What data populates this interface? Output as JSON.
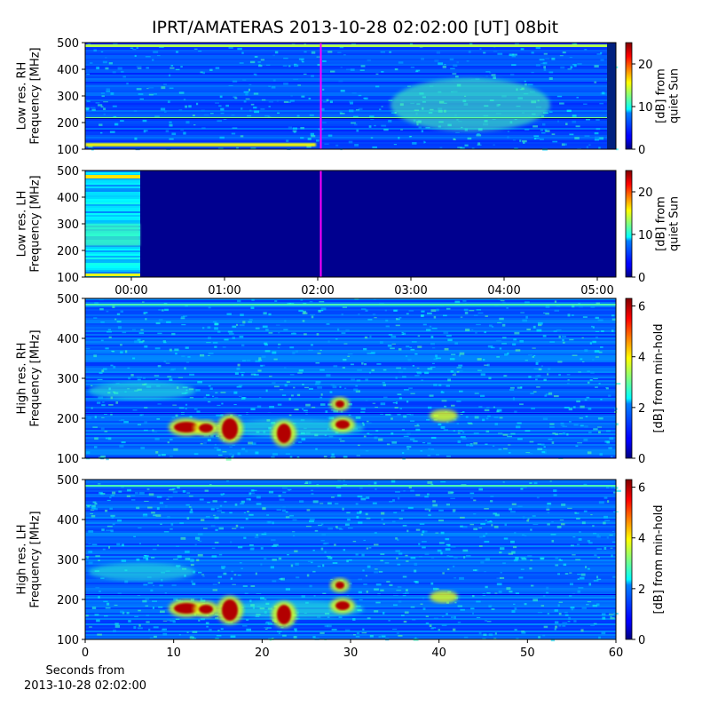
{
  "title": "IPRT/AMATERAS 2013-10-28 02:02:00 [UT]   08bit",
  "chart_data": [
    {
      "type": "heatmap",
      "ylabel": [
        "Low res. RH",
        "Frequency [MHz]"
      ],
      "xlim": [
        -0.495,
        5.2
      ],
      "ylim": [
        100,
        500
      ],
      "yticks": [
        100,
        200,
        300,
        400,
        500
      ],
      "marker_x": 2.0333,
      "marker_color": "#ff00ff",
      "clim": [
        0,
        25
      ],
      "cticks": [
        0,
        10,
        20
      ],
      "clabel": [
        "[dB] from",
        "quiet Sun"
      ]
    },
    {
      "type": "heatmap",
      "ylabel": [
        "Low res. LH",
        "Frequency [MHz]"
      ],
      "xlim": [
        -0.495,
        5.2
      ],
      "ylim": [
        100,
        500
      ],
      "yticks": [
        100,
        200,
        300,
        400,
        500
      ],
      "xticks": [
        {
          "value": 0,
          "label": "00:00"
        },
        {
          "value": 1,
          "label": "01:00"
        },
        {
          "value": 2,
          "label": "02:00"
        },
        {
          "value": 3,
          "label": "03:00"
        },
        {
          "value": 4,
          "label": "04:00"
        },
        {
          "value": 5,
          "label": "05:00"
        }
      ],
      "marker_x": 2.0333,
      "marker_color": "#ff00ff",
      "clim": [
        0,
        25
      ],
      "cticks": [
        0,
        10,
        20
      ],
      "clabel": [
        "[dB] from",
        "quiet Sun"
      ]
    },
    {
      "type": "heatmap",
      "ylabel": [
        "High res. RH",
        "Frequency [MHz]"
      ],
      "xlim": [
        0,
        60
      ],
      "ylim": [
        100,
        500
      ],
      "yticks": [
        100,
        200,
        300,
        400,
        500
      ],
      "clim": [
        0,
        6.3
      ],
      "cticks": [
        0,
        2,
        4,
        6
      ],
      "clabel": [
        "[dB] from min-hold"
      ]
    },
    {
      "type": "heatmap",
      "ylabel": [
        "High res. LH",
        "Frequency [MHz]"
      ],
      "xlim": [
        0,
        60
      ],
      "ylim": [
        100,
        500
      ],
      "yticks": [
        100,
        200,
        300,
        400,
        500
      ],
      "xticks": [
        0,
        10,
        20,
        30,
        40,
        50,
        60
      ],
      "xlabel": [
        "Seconds from",
        "2013-10-28 02:02:00"
      ],
      "clim": [
        0,
        6.3
      ],
      "cticks": [
        0,
        2,
        4,
        6
      ],
      "clabel": [
        "[dB] from min-hold"
      ]
    }
  ]
}
